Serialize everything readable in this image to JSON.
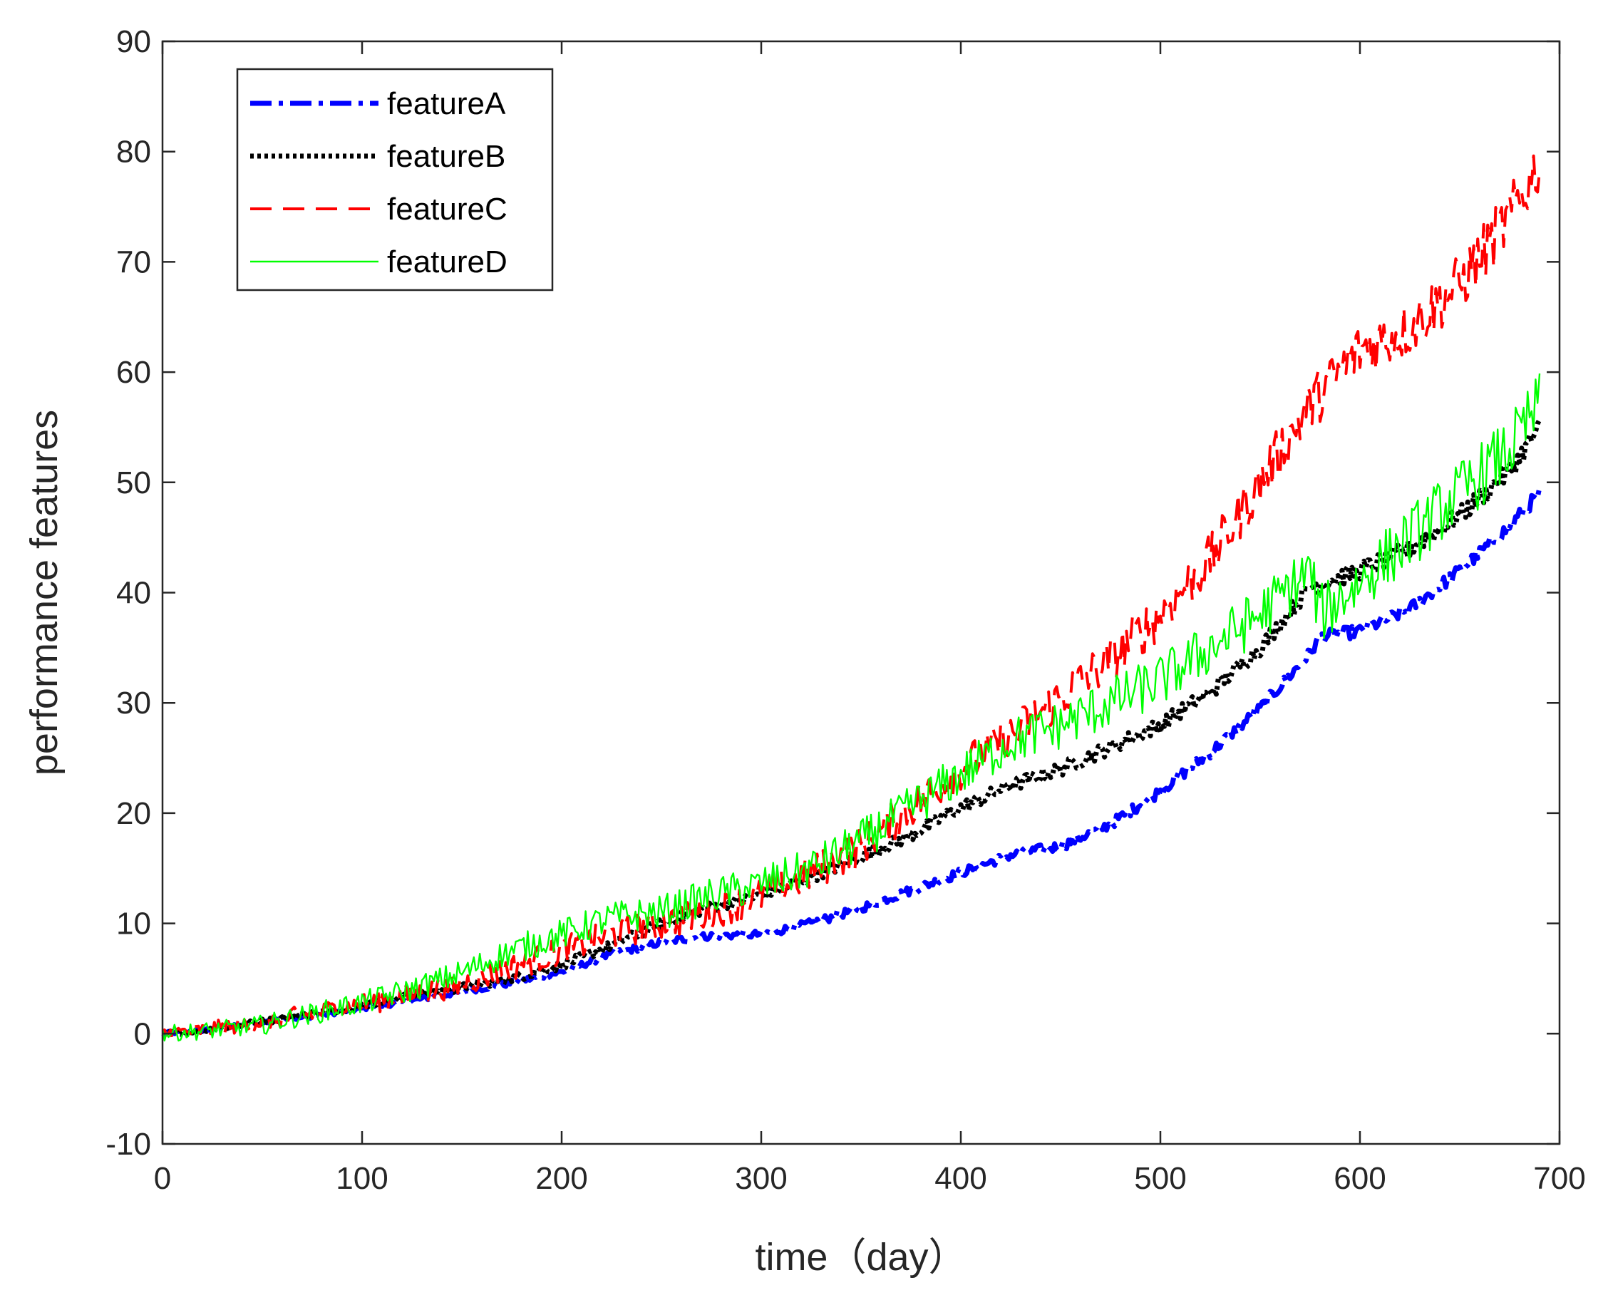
{
  "chart_data": {
    "type": "line",
    "title": "",
    "xlabel": "time（day）",
    "ylabel": "performance features",
    "xlim": [
      0,
      700
    ],
    "ylim": [
      -10,
      90
    ],
    "xticks": [
      0,
      100,
      200,
      300,
      400,
      500,
      600,
      700
    ],
    "yticks": [
      -10,
      0,
      10,
      20,
      30,
      40,
      50,
      60,
      70,
      80,
      90
    ],
    "grid": false,
    "legend_position": "top-left",
    "series": [
      {
        "name": "featureA",
        "color": "#0000ff",
        "style": "dash-dot",
        "x": [
          0,
          25,
          50,
          75,
          100,
          125,
          150,
          175,
          200,
          225,
          250,
          275,
          300,
          325,
          350,
          375,
          400,
          425,
          450,
          475,
          500,
          525,
          550,
          575,
          580,
          600,
          625,
          650,
          675,
          690
        ],
        "y": [
          0,
          0.4,
          1.0,
          1.6,
          2.3,
          3.0,
          3.8,
          4.6,
          5.6,
          7.2,
          8.3,
          8.9,
          9.0,
          10.0,
          11.4,
          13.0,
          14.6,
          16.2,
          17.0,
          19.0,
          22.0,
          25.5,
          29.5,
          34.5,
          36.0,
          36.5,
          38.5,
          42.0,
          46.0,
          49.0
        ]
      },
      {
        "name": "featureB",
        "color": "#000000",
        "style": "dotted",
        "x": [
          0,
          25,
          50,
          75,
          100,
          125,
          150,
          175,
          200,
          225,
          250,
          275,
          300,
          325,
          350,
          375,
          400,
          425,
          450,
          475,
          500,
          525,
          550,
          575,
          600,
          625,
          650,
          675,
          690
        ],
        "y": [
          0,
          0.4,
          1.1,
          1.8,
          2.6,
          3.4,
          4.2,
          5.0,
          6.2,
          8.0,
          10.0,
          11.5,
          12.5,
          14.2,
          16.0,
          18.0,
          20.5,
          22.5,
          24.0,
          26.0,
          28.0,
          31.0,
          35.0,
          40.5,
          42.0,
          44.0,
          47.0,
          51.0,
          55.0
        ]
      },
      {
        "name": "featureC",
        "color": "#ff0000",
        "style": "dashed",
        "x": [
          0,
          25,
          50,
          75,
          100,
          125,
          150,
          175,
          200,
          225,
          250,
          275,
          300,
          325,
          350,
          375,
          400,
          425,
          450,
          475,
          500,
          525,
          550,
          575,
          600,
          625,
          650,
          675,
          690
        ],
        "y": [
          0,
          0.4,
          1.1,
          1.8,
          2.7,
          3.5,
          4.5,
          6.0,
          7.5,
          9.0,
          10.0,
          11.0,
          12.5,
          14.5,
          17.0,
          20.5,
          24.0,
          27.0,
          30.5,
          34.0,
          38.0,
          43.0,
          50.0,
          57.0,
          62.0,
          64.0,
          68.0,
          74.0,
          79.0
        ]
      },
      {
        "name": "featureD",
        "color": "#00ff00",
        "style": "solid",
        "x": [
          0,
          25,
          50,
          75,
          100,
          125,
          150,
          175,
          200,
          225,
          250,
          275,
          300,
          325,
          350,
          375,
          400,
          425,
          450,
          475,
          500,
          525,
          550,
          575,
          580,
          600,
          625,
          650,
          675,
          690
        ],
        "y": [
          0,
          0.3,
          0.8,
          1.8,
          2.8,
          4.0,
          5.5,
          7.5,
          9.0,
          10.5,
          11.0,
          12.5,
          13.5,
          15.0,
          17.5,
          20.5,
          23.5,
          26.5,
          28.0,
          30.0,
          32.0,
          35.0,
          38.0,
          42.0,
          38.0,
          41.0,
          45.0,
          49.0,
          53.0,
          57.0
        ]
      }
    ]
  }
}
